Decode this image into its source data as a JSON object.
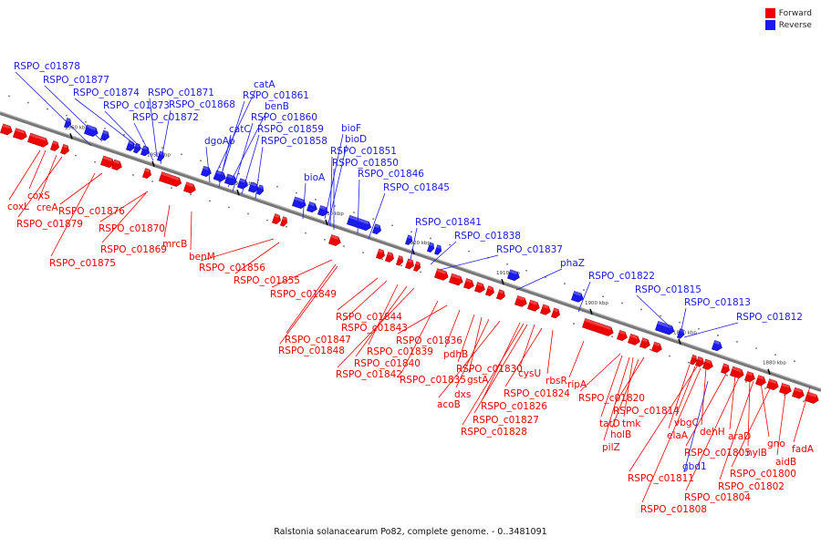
{
  "colors": {
    "forward": "#ee0000",
    "reverse": "#1a1aee",
    "axis": "#777777"
  },
  "legend": {
    "forward": "Forward",
    "reverse": "Reverse"
  },
  "caption": "Ralstonia solanacearum Po82, complete genome. - 0..3481091",
  "ticks": [
    "1960 kbp",
    "1950 kbp",
    "1940 kbp",
    "1930 kbp",
    "1920 kbp",
    "1910 kbp",
    "1900 kbp",
    "1890 kbp",
    "1880 kbp"
  ],
  "reverse_labels": [
    "RSPO_c01878",
    "RSPO_c01877",
    "RSPO_c01874",
    "RSPO_c01873",
    "RSPO_c01871",
    "RSPO_c01868",
    "RSPO_c01872",
    "catA",
    "RSPO_c01861",
    "benB",
    "RSPO_c01860",
    "catC",
    "RSPO_c01859",
    "dgoAb",
    "RSPO_c01858",
    "bioF",
    "bioD",
    "RSPO_c01851",
    "RSPO_c01850",
    "bioA",
    "RSPO_c01846",
    "RSPO_c01845",
    "RSPO_c01841",
    "RSPO_c01838",
    "RSPO_c01837",
    "phaZ",
    "RSPO_c01822",
    "RSPO_c01815",
    "RSPO_c01813",
    "RSPO_c01812",
    "gbd1"
  ],
  "forward_labels": [
    "coxS",
    "coxL",
    "creA",
    "RSPO_c01879",
    "RSPO_c01876",
    "RSPO_c01875",
    "RSPO_c01870",
    "RSPO_c01869",
    "mrcB",
    "benM",
    "RSPO_c01856",
    "RSPO_c01855",
    "RSPO_c01849",
    "RSPO_c01847",
    "RSPO_c01848",
    "RSPO_c01844",
    "RSPO_c01843",
    "RSPO_c01836",
    "RSPO_c01839",
    "RSPO_c01840",
    "RSPO_c01842",
    "pdhB",
    "RSPO_c01830",
    "gstA",
    "RSPO_c01835",
    "dxs",
    "acoB",
    "cysU",
    "RSPO_c01824",
    "rbsR",
    "RSPO_c01826",
    "RSPO_c01827",
    "RSPO_c01828",
    "ripA",
    "RSPO_c01820",
    "RSPO_c01814",
    "tatD",
    "tmk",
    "holB",
    "pilZ",
    "vbgC",
    "elaA",
    "dehH",
    "RSPO_c01805",
    "araD",
    "nylB",
    "gno",
    "fadA",
    "aidB",
    "RSPO_c01800",
    "RSPO_c01802",
    "RSPO_c01811",
    "RSPO_c01804",
    "RSPO_c01808"
  ]
}
